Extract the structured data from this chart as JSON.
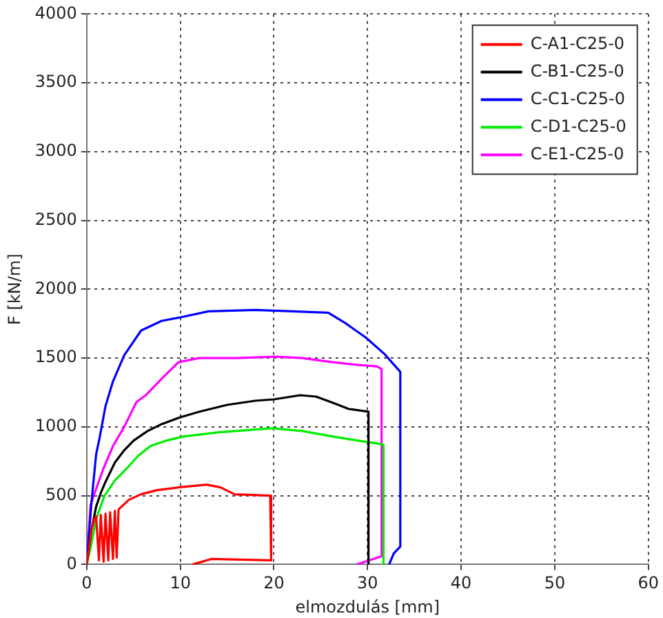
{
  "chart_data": {
    "type": "line",
    "xlabel": "elmozdulás [mm]",
    "ylabel": "F [kN/m]",
    "xlim": [
      0,
      60
    ],
    "xticks": [
      0,
      10,
      20,
      30,
      40,
      50,
      60
    ],
    "ylim": [
      0,
      4000
    ],
    "yticks": [
      0,
      500,
      1000,
      1500,
      2000,
      2500,
      3000,
      3500,
      4000
    ],
    "grid": true,
    "legend": "top right",
    "marker": "none",
    "line_style": "solid",
    "series": [
      {
        "name": "C-A1-C25-0",
        "color": "#ff0000",
        "x": [
          0,
          0.5,
          0.8,
          1.0,
          1.3,
          1.5,
          1.8,
          2.0,
          2.3,
          2.5,
          2.8,
          3.0,
          3.2,
          3.4,
          4.5,
          5.8,
          7.5,
          9.8,
          12.8,
          14.3,
          15.8,
          19.6,
          19.7,
          13.3,
          11.3
        ],
        "values": [
          0,
          250,
          330,
          350,
          30,
          360,
          20,
          370,
          30,
          380,
          40,
          390,
          50,
          400,
          470,
          510,
          540,
          560,
          580,
          560,
          510,
          500,
          30,
          40,
          0
        ]
      },
      {
        "name": "C-B1-C25-0",
        "color": "#000000",
        "x": [
          0,
          0.5,
          1.0,
          1.5,
          2.0,
          3.0,
          4.0,
          5.0,
          6.5,
          8.0,
          10.0,
          12.0,
          15.0,
          18.0,
          20.0,
          22.8,
          24.5,
          26.5,
          28.0,
          30.1,
          30.1
        ],
        "values": [
          0,
          250,
          420,
          520,
          600,
          740,
          830,
          900,
          970,
          1020,
          1070,
          1110,
          1160,
          1190,
          1200,
          1230,
          1220,
          1170,
          1130,
          1110,
          0
        ]
      },
      {
        "name": "C-C1-C25-0",
        "color": "#0000ff",
        "x": [
          0,
          0.5,
          1.0,
          1.4,
          2.0,
          2.8,
          4.0,
          5.8,
          8.0,
          10.3,
          13.0,
          18.0,
          22.0,
          25.8,
          27.5,
          29.8,
          31.8,
          33.5,
          33.5,
          32.8,
          32.3
        ],
        "values": [
          0,
          450,
          800,
          930,
          1150,
          1330,
          1520,
          1700,
          1770,
          1800,
          1840,
          1850,
          1840,
          1830,
          1760,
          1650,
          1530,
          1400,
          130,
          80,
          0
        ]
      },
      {
        "name": "C-D1-C25-0",
        "color": "#00ee00",
        "x": [
          0,
          0.5,
          1.0,
          1.9,
          3.0,
          4.3,
          5.5,
          6.8,
          8.5,
          10.3,
          14.0,
          19.8,
          23.0,
          26.3,
          29.0,
          31.0,
          31.7,
          31.7
        ],
        "values": [
          0,
          150,
          330,
          500,
          610,
          700,
          790,
          860,
          900,
          930,
          960,
          990,
          970,
          930,
          900,
          880,
          870,
          0
        ]
      },
      {
        "name": "C-E1-C25-0",
        "color": "#ff00ff",
        "x": [
          0,
          0.4,
          1.0,
          1.8,
          2.8,
          4.0,
          5.3,
          6.3,
          8.0,
          9.8,
          12.0,
          16.0,
          20.3,
          23.0,
          26.3,
          29.0,
          31.0,
          31.5,
          31.5,
          28.8
        ],
        "values": [
          0,
          430,
          550,
          700,
          860,
          1000,
          1180,
          1230,
          1350,
          1470,
          1500,
          1500,
          1510,
          1500,
          1470,
          1450,
          1440,
          1420,
          60,
          0
        ]
      }
    ]
  }
}
